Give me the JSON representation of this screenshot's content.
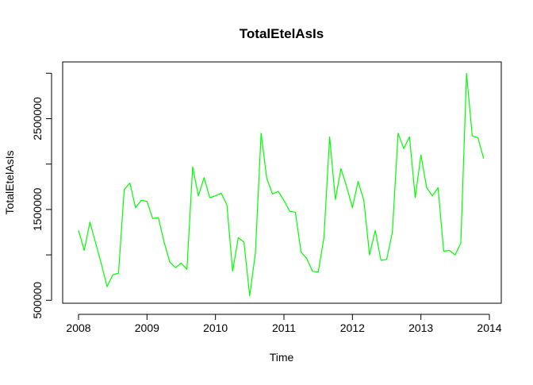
{
  "chart_data": {
    "type": "line",
    "title": "TotalEtelAsIs",
    "xlabel": "Time",
    "ylabel": "TotalEtelAsIs",
    "xlim": [
      2008,
      2014
    ],
    "ylim": [
      520000,
      3020000
    ],
    "x_ticks": [
      2008,
      2009,
      2010,
      2011,
      2012,
      2013,
      2014
    ],
    "y_ticks": [
      500000,
      1500000,
      2500000
    ],
    "y_tick_labels": [
      "500000",
      "1500000",
      "2500000"
    ],
    "y_ticks_unlabeled": [
      1000000,
      2000000,
      3000000
    ],
    "grid": false,
    "legend": "none",
    "line_color": "#00ff00",
    "series": [
      {
        "start": 2008,
        "frequency": 12,
        "x": [
          2008.0,
          2008.0833,
          2008.1667,
          2008.25,
          2008.3333,
          2008.4167,
          2008.5,
          2008.5833,
          2008.6667,
          2008.75,
          2008.8333,
          2008.9167,
          2009.0,
          2009.0833,
          2009.1667,
          2009.25,
          2009.3333,
          2009.4167,
          2009.5,
          2009.5833,
          2009.6667,
          2009.75,
          2009.8333,
          2009.9167,
          2010.0,
          2010.0833,
          2010.1667,
          2010.25,
          2010.3333,
          2010.4167,
          2010.5,
          2010.5833,
          2010.6667,
          2010.75,
          2010.8333,
          2010.9167,
          2011.0,
          2011.0833,
          2011.1667,
          2011.25,
          2011.3333,
          2011.4167,
          2011.5,
          2011.5833,
          2011.6667,
          2011.75,
          2011.8333,
          2011.9167,
          2012.0,
          2012.0833,
          2012.1667,
          2012.25,
          2012.3333,
          2012.4167,
          2012.5,
          2012.5833,
          2012.6667,
          2012.75,
          2012.8333,
          2012.9167,
          2013.0,
          2013.0833,
          2013.1667,
          2013.25,
          2013.3333,
          2013.4167,
          2013.5,
          2013.5833,
          2013.6667,
          2013.75,
          2013.8333,
          2013.9167
        ],
        "values": [
          1270000,
          1050000,
          1360000,
          1130000,
          900000,
          650000,
          780000,
          800000,
          1720000,
          1790000,
          1520000,
          1600000,
          1590000,
          1400000,
          1410000,
          1140000,
          920000,
          860000,
          910000,
          840000,
          1970000,
          1650000,
          1850000,
          1630000,
          1650000,
          1680000,
          1550000,
          820000,
          1190000,
          1140000,
          550000,
          1020000,
          2340000,
          1840000,
          1670000,
          1700000,
          1600000,
          1480000,
          1470000,
          1030000,
          960000,
          820000,
          810000,
          1190000,
          2300000,
          1610000,
          1950000,
          1750000,
          1520000,
          1810000,
          1600000,
          1000000,
          1270000,
          940000,
          950000,
          1250000,
          2340000,
          2170000,
          2300000,
          1630000,
          2100000,
          1740000,
          1650000,
          1740000,
          1040000,
          1050000,
          1000000,
          1130000,
          3000000,
          2310000,
          2290000,
          2060000
        ]
      }
    ]
  }
}
